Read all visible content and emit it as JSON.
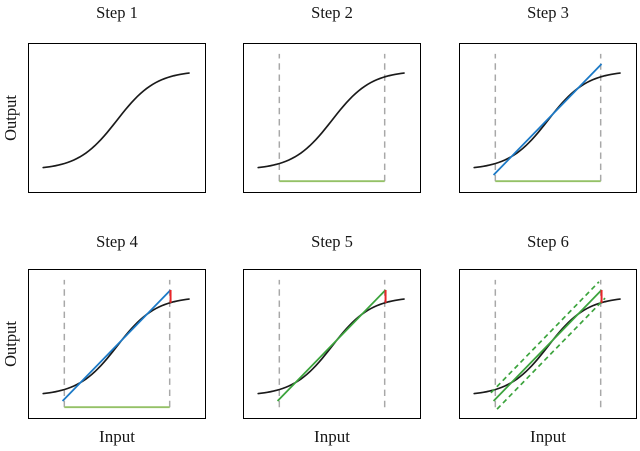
{
  "figure": {
    "axes": {
      "xlabel": "Input",
      "ylabel": "Output"
    }
  },
  "colors": {
    "curve_black": "#1a1a1a",
    "region_gray": "#a8a8a8",
    "bracket_green": "#94c166",
    "relaxation_blue": "#1b79c6",
    "relaxation_green": "#3ba33c",
    "error_red": "#e8262a",
    "spine_black": "#000000"
  },
  "chart_data": {
    "type": "line",
    "title": "",
    "description": "Six-step illustration of building linear relaxation bounds for a sigmoid activation: Step 1 activation curve; Step 2 input region marked by gray dashed verticals and green bracket; Step 3 blue candidate linear approximation; Step 4 red segment marking approximation error at upper input limit; Step 5 chosen green relaxation line with error segment; Step 6 green dashed upper and lower linear bounds around the curve.",
    "grid": false,
    "legend": false,
    "axis_ticks": "none",
    "panels": [
      {
        "title": "Step 1",
        "elements": [
          "sigmoid"
        ]
      },
      {
        "title": "Step 2",
        "elements": [
          "sigmoid",
          "input_region",
          "region_bracket"
        ]
      },
      {
        "title": "Step 3",
        "elements": [
          "sigmoid",
          "input_region",
          "region_bracket",
          "relaxation_line_blue"
        ]
      },
      {
        "title": "Step 4",
        "elements": [
          "sigmoid",
          "input_region",
          "region_bracket",
          "relaxation_line_blue",
          "error_segment"
        ]
      },
      {
        "title": "Step 5",
        "elements": [
          "sigmoid",
          "input_region",
          "relaxation_line_green",
          "error_segment"
        ]
      },
      {
        "title": "Step 6",
        "elements": [
          "sigmoid",
          "input_region",
          "relaxation_line_green",
          "bound_lines_green_dashed",
          "error_segment"
        ]
      }
    ],
    "geometry_axis_fraction": {
      "sigmoid": {
        "x_start": 0.08,
        "x_end": 0.91,
        "y_min": 0.15,
        "y_max": 0.82,
        "center": 0.5,
        "steepness": 9
      },
      "input_region": {
        "x_lower": 0.2,
        "x_upper": 0.8,
        "line_bottom": 0.073,
        "line_top": 0.933
      },
      "relaxation_line": {
        "x0": 0.19,
        "y0": 0.115,
        "x1": 0.805,
        "y1": 0.865
      },
      "upper_bound_dashed": {
        "x0": 0.175,
        "y0": 0.17,
        "x1": 0.79,
        "y1": 0.92
      },
      "lower_bound_dashed": {
        "x0": 0.21,
        "y0": 0.06,
        "x1": 0.825,
        "y1": 0.81
      },
      "error_segment": {
        "x": 0.805,
        "y0": 0.778,
        "y1": 0.865
      }
    }
  }
}
